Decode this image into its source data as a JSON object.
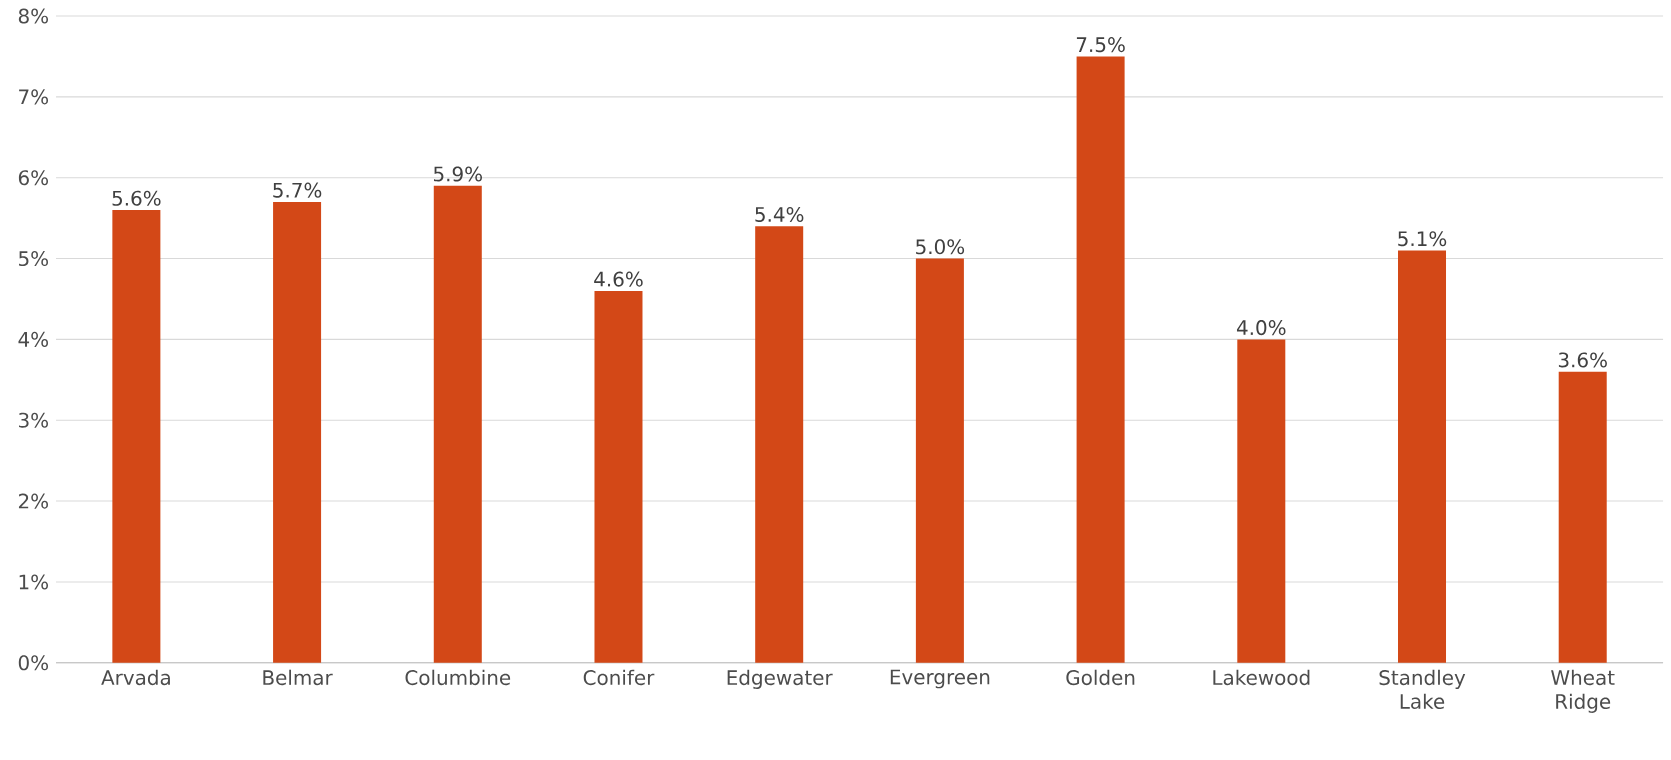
{
  "chart_data": {
    "type": "bar",
    "categories": [
      "Arvada",
      "Belmar",
      "Columbine",
      "Conifer",
      "Edgewater",
      "Evergreen",
      "Golden",
      "Lakewood",
      "Standley Lake",
      "Wheat Ridge"
    ],
    "values": [
      5.6,
      5.7,
      5.9,
      4.6,
      5.4,
      5.0,
      7.5,
      4.0,
      5.1,
      3.6
    ],
    "value_labels": [
      "5.6%",
      "5.7%",
      "5.9%",
      "4.6%",
      "5.4%",
      "5.0%",
      "7.5%",
      "4.0%",
      "5.1%",
      "3.6%"
    ],
    "color": "#d34817",
    "ylim": [
      0,
      8
    ],
    "yticks": [
      {
        "value": 0,
        "label": "0%"
      },
      {
        "value": 1,
        "label": "1%"
      },
      {
        "value": 2,
        "label": "2%"
      },
      {
        "value": 3,
        "label": "3%"
      },
      {
        "value": 4,
        "label": "4%"
      },
      {
        "value": 5,
        "label": "5%"
      },
      {
        "value": 6,
        "label": "6%"
      },
      {
        "value": 7,
        "label": "7%"
      },
      {
        "value": 8,
        "label": "8%"
      }
    ],
    "grid": "y"
  }
}
